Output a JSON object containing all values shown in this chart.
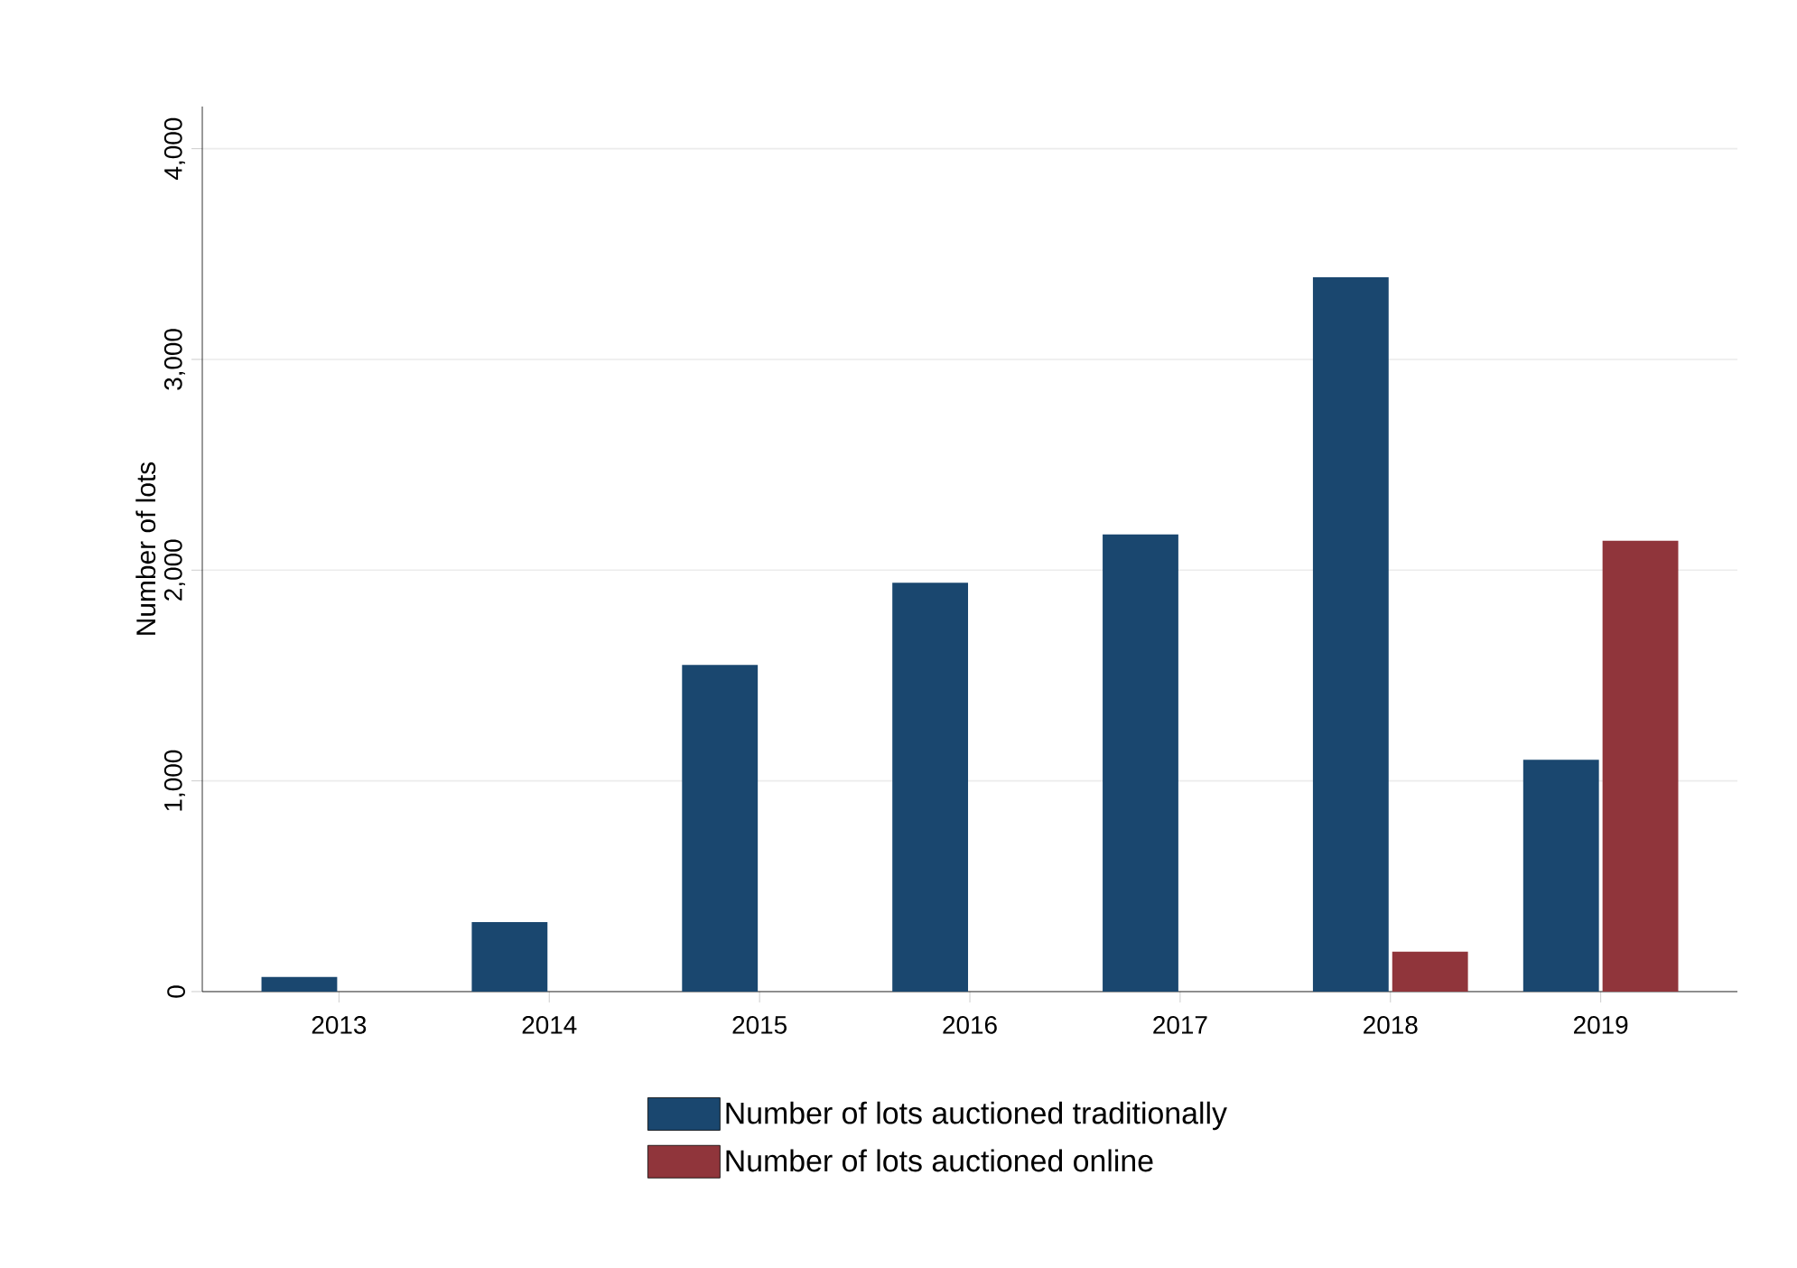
{
  "chart_data": {
    "type": "bar",
    "ylabel": "Number of lots",
    "categories": [
      "2013",
      "2014",
      "2015",
      "2016",
      "2017",
      "2018",
      "2019"
    ],
    "series": [
      {
        "name": "Number of lots auctioned traditionally",
        "color": "#1a476f",
        "values": [
          70,
          330,
          1550,
          1940,
          2170,
          3390,
          1100
        ]
      },
      {
        "name": "Number of lots auctioned online",
        "color": "#90353b",
        "values": [
          null,
          null,
          null,
          null,
          null,
          190,
          2140
        ]
      }
    ],
    "ylim": [
      0,
      4200
    ],
    "yticks": [
      0,
      {
        "value": 1000,
        "label": "1,000"
      },
      {
        "value": 2000,
        "label": "2,000"
      },
      {
        "value": 3000,
        "label": "3,000"
      },
      {
        "value": 4000,
        "label": "4,000"
      }
    ],
    "grid": "y",
    "legend": "bottom"
  }
}
